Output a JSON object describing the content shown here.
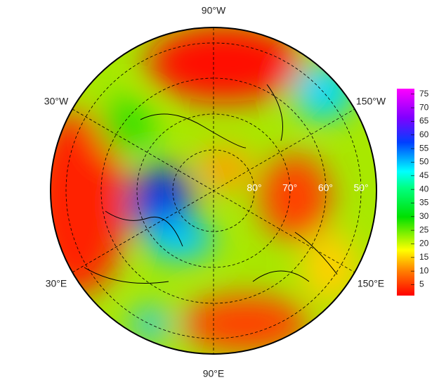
{
  "map": {
    "longitude_labels": [
      "90°W",
      "30°W",
      "150°W",
      "30°E",
      "150°E",
      "90°E"
    ],
    "latitude_labels": [
      "80°",
      "70°",
      "60°",
      "50°"
    ],
    "colorbar": {
      "ticks": [
        5,
        10,
        15,
        20,
        25,
        30,
        35,
        40,
        45,
        50,
        55,
        60,
        65,
        70,
        75
      ],
      "range": [
        1,
        77
      ]
    }
  }
}
